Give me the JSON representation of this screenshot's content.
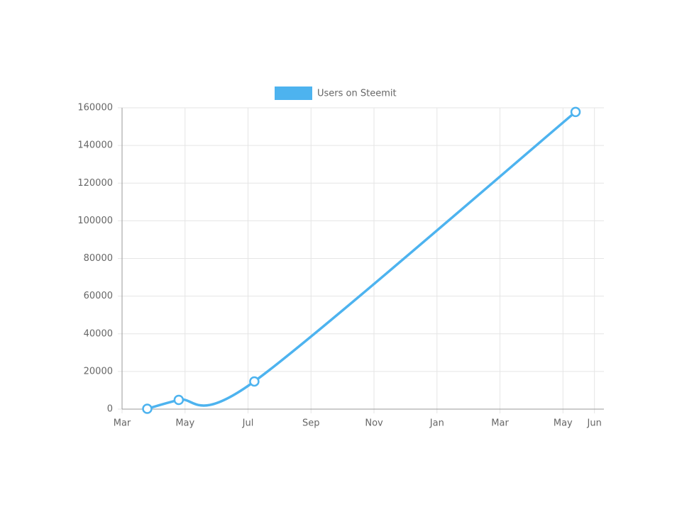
{
  "chart_data": {
    "type": "line",
    "x": [
      0.8,
      1.8,
      4.2,
      14.4
    ],
    "series": [
      {
        "name": "Users on Steemit",
        "color": "#4db3ef",
        "values": [
          200,
          4900,
          14700,
          157800
        ]
      }
    ],
    "xlim": [
      0,
      15.3
    ],
    "xticks": [
      {
        "value": 0,
        "label": "Mar"
      },
      {
        "value": 2,
        "label": "May"
      },
      {
        "value": 4,
        "label": "Jul"
      },
      {
        "value": 6,
        "label": "Sep"
      },
      {
        "value": 8,
        "label": "Nov"
      },
      {
        "value": 10,
        "label": "Jan"
      },
      {
        "value": 12,
        "label": "Mar"
      },
      {
        "value": 14,
        "label": "May"
      },
      {
        "value": 15,
        "label": "Jun"
      }
    ],
    "ylim": [
      0,
      160000
    ],
    "yticks": [
      0,
      20000,
      40000,
      60000,
      80000,
      100000,
      120000,
      140000,
      160000
    ],
    "grid": true,
    "legend": "top"
  }
}
